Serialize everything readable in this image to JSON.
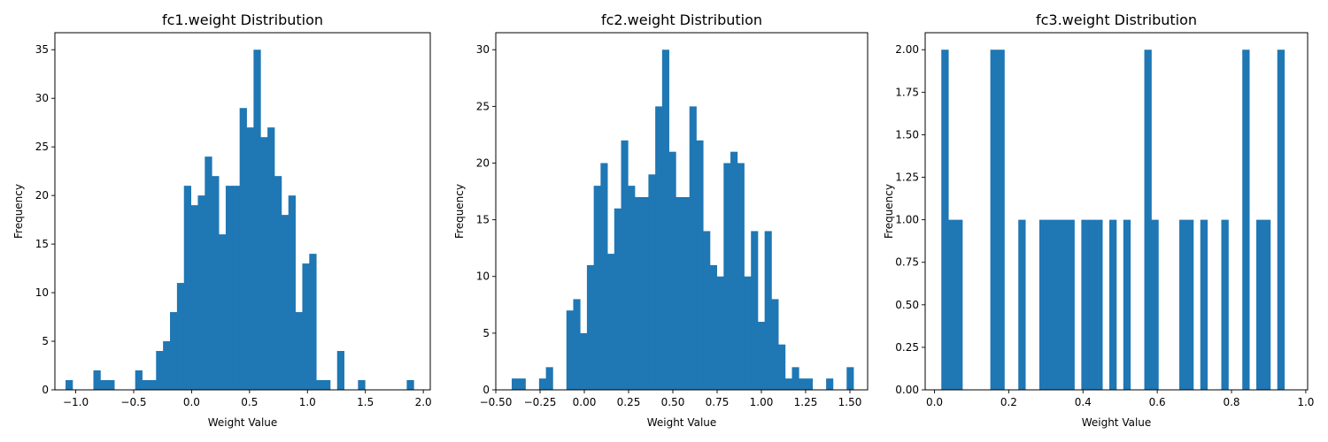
{
  "chart_data": [
    {
      "type": "bar",
      "title": "fc1.weight Distribution",
      "xlabel": "Weight Value",
      "ylabel": "Frequency",
      "xlim": [
        -1.18,
        2.06
      ],
      "ylim": [
        0,
        36.75
      ],
      "xticks": [
        -1.0,
        -0.5,
        0.0,
        0.5,
        1.0,
        1.5,
        2.0
      ],
      "xtick_labels": [
        "−1.0",
        "−0.5",
        "0.0",
        "0.5",
        "1.0",
        "1.5",
        "2.0"
      ],
      "yticks": [
        0,
        5,
        10,
        15,
        20,
        25,
        30,
        35
      ],
      "ytick_labels": [
        "0",
        "5",
        "10",
        "15",
        "20",
        "25",
        "30",
        "35"
      ],
      "bin_start": -1.088,
      "bin_width": 0.0601,
      "counts": [
        1,
        0,
        0,
        0,
        2,
        1,
        1,
        0,
        0,
        0,
        2,
        1,
        1,
        4,
        5,
        8,
        11,
        21,
        19,
        20,
        24,
        22,
        16,
        21,
        21,
        29,
        27,
        35,
        26,
        27,
        22,
        18,
        20,
        8,
        13,
        14,
        1,
        1,
        0,
        4,
        0,
        0,
        1,
        0,
        0,
        0,
        0,
        0,
        0,
        1
      ],
      "color": "#1f77b4",
      "grid": false
    },
    {
      "type": "bar",
      "title": "fc2.weight Distribution",
      "xlabel": "Weight Value",
      "ylabel": "Frequency",
      "xlim": [
        -0.5,
        1.6
      ],
      "ylim": [
        0,
        31.5
      ],
      "xticks": [
        -0.5,
        -0.25,
        0.0,
        0.25,
        0.5,
        0.75,
        1.0,
        1.25,
        1.5
      ],
      "xtick_labels": [
        "−0.50",
        "−0.25",
        "0.00",
        "0.25",
        "0.50",
        "0.75",
        "1.00",
        "1.25",
        "1.50"
      ],
      "yticks": [
        0,
        5,
        10,
        15,
        20,
        25,
        30
      ],
      "ytick_labels": [
        "0",
        "5",
        "10",
        "15",
        "20",
        "25",
        "30"
      ],
      "bin_start": -0.41,
      "bin_width": 0.0386,
      "counts": [
        1,
        1,
        0,
        0,
        1,
        2,
        0,
        0,
        7,
        8,
        5,
        11,
        18,
        20,
        12,
        16,
        22,
        18,
        17,
        17,
        19,
        25,
        30,
        21,
        17,
        17,
        25,
        22,
        14,
        11,
        10,
        20,
        21,
        20,
        10,
        14,
        6,
        14,
        8,
        4,
        1,
        2,
        1,
        1,
        0,
        0,
        1,
        0,
        0,
        2
      ],
      "color": "#1f77b4",
      "grid": false
    },
    {
      "type": "bar",
      "title": "fc3.weight Distribution",
      "xlabel": "Weight Value",
      "ylabel": "Frequency",
      "xlim": [
        -0.025,
        1.005
      ],
      "ylim": [
        0,
        2.1
      ],
      "xticks": [
        0.0,
        0.2,
        0.4,
        0.6,
        0.8,
        1.0
      ],
      "xtick_labels": [
        "0.0",
        "0.2",
        "0.4",
        "0.6",
        "0.8",
        "1.0"
      ],
      "yticks": [
        0,
        0.25,
        0.5,
        0.75,
        1.0,
        1.25,
        1.5,
        1.75,
        2.0
      ],
      "ytick_labels": [
        "0.00",
        "0.25",
        "0.50",
        "0.75",
        "1.00",
        "1.25",
        "1.50",
        "1.75",
        "2.00"
      ],
      "bin_start": 0.0185,
      "bin_width": 0.01885,
      "counts": [
        2,
        1,
        1,
        0,
        0,
        0,
        0,
        2,
        2,
        0,
        0,
        1,
        0,
        0,
        1,
        1,
        1,
        1,
        1,
        0,
        1,
        1,
        1,
        0,
        1,
        0,
        1,
        0,
        0,
        2,
        1,
        0,
        0,
        0,
        1,
        1,
        0,
        1,
        0,
        0,
        1,
        0,
        0,
        2,
        0,
        1,
        1,
        0,
        2,
        0
      ],
      "color": "#1f77b4",
      "grid": false
    }
  ]
}
